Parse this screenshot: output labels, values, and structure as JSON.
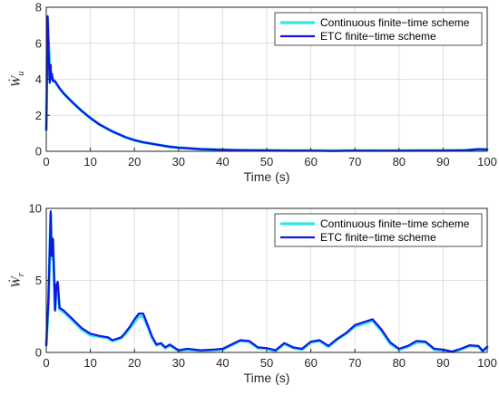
{
  "chart_data": [
    {
      "type": "line",
      "ylabel": "Ẇ",
      "ylabel_sub": "u",
      "xlabel": "Time (s)",
      "xlim": [
        0,
        100
      ],
      "ylim": [
        0,
        8
      ],
      "xticks": [
        "0",
        "10",
        "20",
        "30",
        "40",
        "50",
        "60",
        "70",
        "80",
        "90",
        "100"
      ],
      "yticks": [
        "0",
        "2",
        "4",
        "6",
        "8"
      ],
      "grid": true,
      "legend_location": "top-right",
      "series": [
        {
          "name": "Continuous finite−time scheme",
          "color": "#33e6e6",
          "x": [
            0,
            0.3,
            0.5,
            0.8,
            1.0,
            1.2,
            1.5,
            2,
            3,
            4,
            5,
            6,
            8,
            10,
            12,
            15,
            18,
            20,
            22,
            25,
            28,
            30,
            35,
            40,
            45,
            50,
            55,
            60,
            65,
            70,
            75,
            80,
            85,
            90,
            95,
            98,
            100
          ],
          "y": [
            1.2,
            7.4,
            6.0,
            4.8,
            4.3,
            4.1,
            4.05,
            3.85,
            3.5,
            3.2,
            2.95,
            2.7,
            2.25,
            1.85,
            1.5,
            1.1,
            0.78,
            0.62,
            0.5,
            0.37,
            0.25,
            0.2,
            0.12,
            0.08,
            0.06,
            0.05,
            0.04,
            0.04,
            0.03,
            0.04,
            0.04,
            0.04,
            0.05,
            0.05,
            0.06,
            0.1,
            0.1
          ]
        },
        {
          "name": "ETC finite−time scheme",
          "color": "#1414e6",
          "x": [
            0,
            0.2,
            0.3,
            0.5,
            0.7,
            0.8,
            1.0,
            1.1,
            1.3,
            1.5,
            2,
            3,
            4,
            5,
            6,
            8,
            10,
            12,
            15,
            18,
            20,
            22,
            25,
            28,
            30,
            35,
            40,
            45,
            50,
            55,
            60,
            65,
            70,
            75,
            80,
            85,
            90,
            95,
            98,
            100
          ],
          "y": [
            1.2,
            5.0,
            7.5,
            6.0,
            4.2,
            3.8,
            4.8,
            4.0,
            4.3,
            3.9,
            3.9,
            3.5,
            3.2,
            2.95,
            2.7,
            2.25,
            1.85,
            1.5,
            1.1,
            0.78,
            0.62,
            0.5,
            0.37,
            0.25,
            0.2,
            0.12,
            0.08,
            0.06,
            0.05,
            0.04,
            0.04,
            0.02,
            0.04,
            0.03,
            0.03,
            0.04,
            0.04,
            0.05,
            0.12,
            0.1
          ]
        }
      ]
    },
    {
      "type": "line",
      "ylabel": "Ẇ",
      "ylabel_sub": "r",
      "xlabel": "Time (s)",
      "xlim": [
        0,
        100
      ],
      "ylim": [
        0,
        10
      ],
      "xticks": [
        "0",
        "10",
        "20",
        "30",
        "40",
        "50",
        "60",
        "70",
        "80",
        "90",
        "100"
      ],
      "yticks": [
        "0",
        "5",
        "10"
      ],
      "grid": true,
      "legend_location": "top-right",
      "series": [
        {
          "name": "Continuous finite−time scheme",
          "color": "#33e6e6",
          "x": [
            0,
            0.5,
            1.0,
            1.2,
            1.5,
            1.8,
            2.0,
            2.3,
            2.6,
            3.0,
            4,
            6,
            8,
            10,
            12,
            14,
            15,
            16,
            17,
            18,
            19,
            20,
            21,
            22,
            23,
            24,
            25,
            26,
            27,
            28,
            30,
            32,
            35,
            38,
            40,
            42,
            44,
            46,
            48,
            50,
            52,
            54,
            56,
            58,
            60,
            62,
            64,
            66,
            68,
            70,
            72,
            74,
            76,
            78,
            80,
            82,
            84,
            86,
            88,
            90,
            92,
            94,
            96,
            98,
            99,
            100
          ],
          "y": [
            0.5,
            3.5,
            9.6,
            6.5,
            7.8,
            5.0,
            3.0,
            4.5,
            4.8,
            3.0,
            2.8,
            2.2,
            1.6,
            1.2,
            1.1,
            1.0,
            0.8,
            0.9,
            1.0,
            1.3,
            1.7,
            2.1,
            2.5,
            2.5,
            1.8,
            1.0,
            0.5,
            0.6,
            0.3,
            0.5,
            0.1,
            0.2,
            0.1,
            0.15,
            0.2,
            0.5,
            0.8,
            0.75,
            0.3,
            0.25,
            0.1,
            0.6,
            0.3,
            0.2,
            0.7,
            0.8,
            0.4,
            0.9,
            1.3,
            1.8,
            2.0,
            2.2,
            1.5,
            0.6,
            0.2,
            0.4,
            0.7,
            0.7,
            0.2,
            0.15,
            0.05,
            0.2,
            0.45,
            0.4,
            0.1,
            0.35
          ]
        },
        {
          "name": "ETC finite−time scheme",
          "color": "#1414e6",
          "x": [
            0,
            0.5,
            1.0,
            1.2,
            1.5,
            1.8,
            2.0,
            2.3,
            2.6,
            3.0,
            4,
            6,
            8,
            10,
            12,
            14,
            15,
            16,
            17,
            18,
            19,
            20,
            21,
            22,
            23,
            24,
            25,
            26,
            27,
            28,
            30,
            32,
            35,
            38,
            40,
            42,
            44,
            46,
            48,
            50,
            52,
            54,
            56,
            58,
            60,
            62,
            64,
            66,
            68,
            70,
            72,
            74,
            76,
            78,
            80,
            82,
            84,
            86,
            88,
            90,
            92,
            94,
            96,
            98,
            99,
            100
          ],
          "y": [
            0.5,
            3.7,
            9.8,
            6.7,
            7.9,
            5.2,
            2.9,
            4.7,
            4.9,
            3.1,
            2.9,
            2.3,
            1.7,
            1.3,
            1.15,
            1.05,
            0.85,
            0.95,
            1.05,
            1.4,
            1.8,
            2.3,
            2.7,
            2.7,
            1.9,
            1.1,
            0.55,
            0.65,
            0.35,
            0.55,
            0.15,
            0.25,
            0.15,
            0.2,
            0.25,
            0.55,
            0.85,
            0.8,
            0.35,
            0.3,
            0.15,
            0.65,
            0.35,
            0.25,
            0.75,
            0.85,
            0.45,
            0.95,
            1.35,
            1.9,
            2.1,
            2.3,
            1.6,
            0.7,
            0.25,
            0.45,
            0.8,
            0.75,
            0.25,
            0.2,
            0.05,
            0.25,
            0.5,
            0.45,
            0.1,
            0.4
          ]
        }
      ]
    }
  ]
}
